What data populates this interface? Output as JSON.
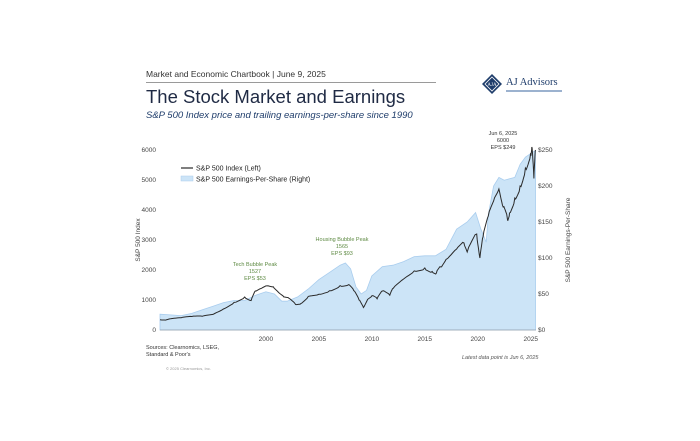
{
  "header": {
    "label": "Market and Economic Chartbook | June 9, 2025",
    "title": "The Stock Market and Earnings",
    "subtitle": "S&P 500 Index price and trailing earnings-per-share since 1990"
  },
  "logo": {
    "name": "AJ Advisors",
    "mark_text": "AJA",
    "colors": {
      "navy": "#1f3d6b"
    }
  },
  "sources_text": "Sources: Clearnomics, LSEG,\nStandard & Poor's",
  "copyright_text": "© 2025 Clearnomics, Inc.",
  "latest_note": "Latest data point is Jun 6, 2025",
  "chart_data": {
    "type": "line",
    "x_ticks": [
      "2000",
      "2005",
      "2010",
      "2015",
      "2020",
      "2025"
    ],
    "xlim": [
      1990,
      2025.5
    ],
    "ylabel": "S&P 500 Index",
    "ylabel_right": "S&P 500 Earnings-Per-Share",
    "ylim": [
      0,
      6000
    ],
    "yticks": [
      "0",
      "1000",
      "2000",
      "3000",
      "4000",
      "5000",
      "6000"
    ],
    "ylim_right": [
      0,
      250
    ],
    "yticks_right": [
      "$0",
      "$50",
      "$100",
      "$150",
      "$200",
      "$250"
    ],
    "legend_placement": "top-left",
    "grid": false,
    "colors": {
      "index_line": "#2a2a2a",
      "eps_fill": "#cce4f7",
      "eps_edge": "#a9cdee",
      "annotation": "#5e8a43"
    },
    "series": [
      {
        "name": "S&P 500 Index (Left)",
        "axis": "left",
        "x": [
          1990,
          1990.5,
          1991,
          1992,
          1993,
          1994,
          1995,
          1996,
          1997,
          1998,
          1998.6,
          1999,
          1999.5,
          2000.1,
          2000.7,
          2001.2,
          2001.7,
          2002.2,
          2002.8,
          2003.3,
          2004,
          2005,
          2006,
          2007,
          2007.8,
          2008.3,
          2008.8,
          2009.2,
          2009.6,
          2010,
          2010.5,
          2011,
          2011.7,
          2012,
          2013,
          2014,
          2015,
          2015.7,
          2016.1,
          2016.5,
          2017,
          2018,
          2018.7,
          2019,
          2019.9,
          2020.2,
          2020.5,
          2021,
          2021.5,
          2022,
          2022.4,
          2022.8,
          2023,
          2023.5,
          2024,
          2024.5,
          2025,
          2025.1,
          2025.3,
          2025.45
        ],
        "values": [
          340,
          330,
          375,
          410,
          450,
          460,
          520,
          700,
          920,
          1100,
          980,
          1300,
          1380,
          1470,
          1440,
          1250,
          1100,
          1050,
          850,
          880,
          1120,
          1190,
          1310,
          1480,
          1510,
          1310,
          1000,
          750,
          1020,
          1140,
          1040,
          1300,
          1160,
          1380,
          1700,
          1970,
          2070,
          1950,
          1900,
          2100,
          2350,
          2700,
          2900,
          2600,
          3200,
          2400,
          3100,
          3800,
          4300,
          4700,
          4100,
          3700,
          3900,
          4400,
          4800,
          5400,
          5900,
          6100,
          5050,
          6000
        ]
      },
      {
        "name": "S&P 500 Earnings-Per-Share (Right)",
        "axis": "right",
        "x": [
          1990,
          1991,
          1992,
          1993,
          1994,
          1995,
          1996,
          1997,
          1998,
          1999,
          2000,
          2000.8,
          2001.5,
          2002,
          2003,
          2004,
          2005,
          2006,
          2007,
          2007.5,
          2008,
          2008.5,
          2009,
          2009.5,
          2010,
          2011,
          2012,
          2013,
          2014,
          2015,
          2016,
          2017,
          2018,
          2019,
          2019.8,
          2020.3,
          2020.8,
          2021,
          2021.5,
          2022,
          2022.5,
          2023,
          2023.5,
          2024,
          2024.5,
          2025,
          2025.3,
          2025.45
        ],
        "values": [
          22,
          21,
          20,
          23,
          28,
          33,
          38,
          41,
          41,
          48,
          53,
          50,
          40,
          40,
          46,
          57,
          70,
          80,
          90,
          93,
          85,
          60,
          50,
          55,
          75,
          88,
          90,
          95,
          102,
          103,
          103,
          112,
          140,
          150,
          163,
          140,
          122,
          160,
          200,
          212,
          208,
          210,
          212,
          230,
          240,
          245,
          248,
          249
        ]
      }
    ],
    "annotations": [
      {
        "lines": [
          "Tech Bubble Peak",
          "1527",
          "EPS $53"
        ],
        "x": 2000,
        "style": "green"
      },
      {
        "lines": [
          "Housing Bubble Peak",
          "1565",
          "EPS $93"
        ],
        "x": 2007.5,
        "style": "green"
      },
      {
        "lines": [
          "Jun 6, 2025",
          "6000",
          "EPS $249"
        ],
        "x": 2025.4,
        "style": "dark"
      }
    ]
  }
}
